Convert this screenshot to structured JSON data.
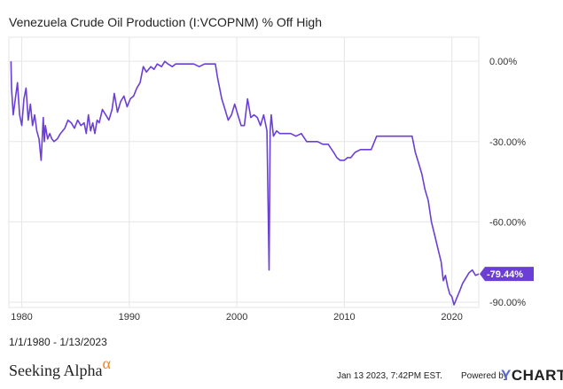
{
  "header": {
    "title": "Venezuela Crude Oil Production (I:VCOPNM) % Off High"
  },
  "footer": {
    "date_range": "1/1/1980 - 1/13/2023",
    "brand": "Seeking Alpha",
    "brand_symbol": "α",
    "timestamp": "Jan 13 2023, 7:42PM EST.",
    "powered_by": "Powered by",
    "ycharts_y": "Y",
    "ycharts_rest": "CHARTS"
  },
  "colors": {
    "line": "#6b3fd4",
    "badge": "#6b3fd4",
    "grid": "#e6e6e6",
    "brand_accent": "#f58220"
  },
  "chart_data": {
    "type": "line",
    "title": "Venezuela Crude Oil Production (I:VCOPNM) % Off High",
    "xlabel": "",
    "ylabel": "",
    "xlim": [
      1978.8,
      2022.5
    ],
    "ylim": [
      -92,
      9
    ],
    "x_ticks": [
      {
        "value": 1980,
        "label": "1980"
      },
      {
        "value": 1990,
        "label": "1990"
      },
      {
        "value": 2000,
        "label": "2000"
      },
      {
        "value": 2010,
        "label": "2010"
      },
      {
        "value": 2020,
        "label": "2020"
      }
    ],
    "y_ticks": [
      {
        "value": 0,
        "label": "0.00%"
      },
      {
        "value": -30,
        "label": "-30.00%"
      },
      {
        "value": -60,
        "label": "-60.00%"
      },
      {
        "value": -90,
        "label": "-90.00%"
      }
    ],
    "last_value_label": "-79.44%",
    "grid": true,
    "series": [
      {
        "values_x": [
          1979.0,
          1979.05,
          1979.2,
          1979.4,
          1979.6,
          1979.8,
          1980.0,
          1980.2,
          1980.4,
          1980.6,
          1980.8,
          1981.0,
          1981.2,
          1981.4,
          1981.6,
          1981.8,
          1982.0,
          1982.1,
          1982.2,
          1982.4,
          1982.6,
          1982.8,
          1983.0,
          1983.3,
          1983.6,
          1984.0,
          1984.3,
          1984.6,
          1984.9,
          1985.2,
          1985.5,
          1985.8,
          1986.0,
          1986.2,
          1986.4,
          1986.6,
          1986.8,
          1987.0,
          1987.2,
          1987.5,
          1987.8,
          1988.1,
          1988.4,
          1988.6,
          1988.9,
          1989.2,
          1989.5,
          1989.8,
          1990.1,
          1990.4,
          1990.7,
          1991.0,
          1991.3,
          1991.6,
          1992.0,
          1992.3,
          1992.6,
          1993.0,
          1993.3,
          1993.6,
          1994.0,
          1994.3,
          1994.6,
          1995.0,
          1995.5,
          1996.0,
          1996.5,
          1997.0,
          1997.5,
          1998.0,
          1998.2,
          1998.4,
          1998.6,
          1998.9,
          1999.2,
          1999.5,
          1999.8,
          2000.1,
          2000.4,
          2000.7,
          2001.0,
          2001.3,
          2001.6,
          2001.9,
          2002.2,
          2002.5,
          2002.8,
          2003.0,
          2003.1,
          2003.2,
          2003.4,
          2003.7,
          2004.0,
          2004.5,
          2005.0,
          2005.5,
          2006.0,
          2006.5,
          2007.0,
          2007.5,
          2008.0,
          2008.5,
          2009.0,
          2009.3,
          2009.6,
          2010.0,
          2010.3,
          2010.6,
          2011.0,
          2011.5,
          2012.0,
          2012.5,
          2013.0,
          2013.5,
          2014.0,
          2014.5,
          2015.0,
          2015.5,
          2016.0,
          2016.3,
          2016.6,
          2016.9,
          2017.2,
          2017.5,
          2017.8,
          2018.1,
          2018.4,
          2018.7,
          2019.0,
          2019.2,
          2019.4,
          2019.6,
          2019.8,
          2020.0,
          2020.2,
          2020.4,
          2020.6,
          2020.8,
          2021.0,
          2021.3,
          2021.6,
          2021.9,
          2022.2,
          2022.5
        ],
        "values_y": [
          0,
          -10,
          -20,
          -14,
          -8,
          -20,
          -24,
          -14,
          -10,
          -22,
          -16,
          -24,
          -20,
          -26,
          -29,
          -37,
          -21,
          -30,
          -24,
          -29,
          -27,
          -29,
          -30,
          -29,
          -27,
          -25,
          -22,
          -23,
          -25,
          -22,
          -24,
          -23,
          -27,
          -20,
          -26,
          -23,
          -27,
          -22,
          -23,
          -18,
          -20,
          -22,
          -18,
          -12,
          -19,
          -15,
          -13,
          -17,
          -14,
          -13,
          -10,
          -8,
          -2,
          -4,
          -2,
          -3,
          -1,
          -2,
          0,
          -1,
          -2,
          -1,
          -1,
          -1,
          -1,
          -1,
          -2,
          -1,
          -1,
          -1,
          -6,
          -10,
          -14,
          -18,
          -22,
          -20,
          -16,
          -20,
          -24,
          -24,
          -14,
          -21,
          -20,
          -21,
          -24,
          -20,
          -26,
          -78,
          -26,
          -20,
          -28,
          -26,
          -27,
          -27,
          -27,
          -28,
          -27,
          -30,
          -30,
          -30,
          -31,
          -31,
          -34,
          -36,
          -37,
          -37,
          -36,
          -36,
          -34,
          -33,
          -33,
          -33,
          -28,
          -28,
          -28,
          -28,
          -28,
          -28,
          -28,
          -28,
          -34,
          -38,
          -42,
          -48,
          -52,
          -60,
          -65,
          -70,
          -75,
          -82,
          -80,
          -84,
          -87,
          -88,
          -91,
          -89,
          -87,
          -85,
          -83,
          -81,
          -79,
          -78,
          -80,
          -79.44
        ]
      }
    ]
  }
}
